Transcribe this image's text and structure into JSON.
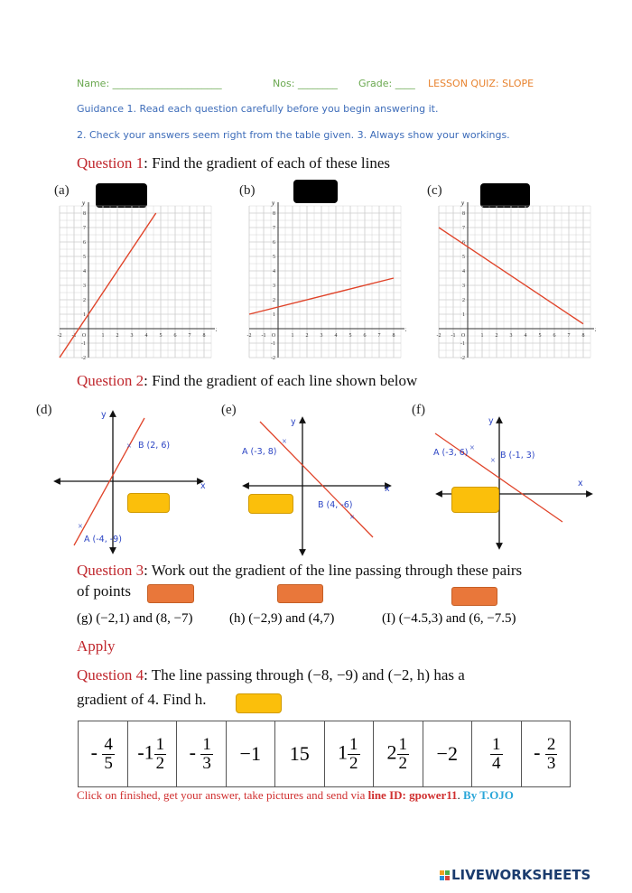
{
  "header": {
    "name_label": "Name: ______________________",
    "nos_label": "Nos: ________",
    "grade_label": "Grade: ____",
    "title": "LESSON QUIZ: SLOPE"
  },
  "guidance": {
    "line1": "Guidance 1. Read each question carefully before you begin answering it.",
    "line2": "2. Check your answers seem right from the table given. 3. Always show your workings."
  },
  "q1": {
    "label": "Question 1",
    "text": ": Find the gradient of each of these lines",
    "graphs": [
      {
        "label": "(a)",
        "x1": -2,
        "y1": -2,
        "x2": 4.67,
        "y2": 8
      },
      {
        "label": "(b)",
        "x1": -2,
        "y1": 1,
        "x2": 8,
        "y2": 3.5
      },
      {
        "label": "(c)",
        "x1": -2,
        "y1": 7,
        "x2": 8,
        "y2": 0.33
      }
    ],
    "axis": {
      "x_ticks": [
        "-2",
        "-1",
        "O",
        "1",
        "2",
        "3",
        "4",
        "5",
        "6",
        "7",
        "8"
      ],
      "y_ticks": [
        "8",
        "7",
        "6",
        "5",
        "4",
        "3",
        "2",
        "1",
        "-1",
        "-2"
      ],
      "x_label": "x",
      "y_label": "y",
      "line_color": "#e0442a"
    }
  },
  "q2": {
    "label": "Question 2",
    "text": ": Find the gradient of each line shown below",
    "graphs": [
      {
        "label": "(d)",
        "a": "A (-4, -9)",
        "b": "B (2, 6)"
      },
      {
        "label": "(e)",
        "a": "A (-3, 8)",
        "b": "B (4, -6)"
      },
      {
        "label": "(f)",
        "a": "A (-3, 6)",
        "b": "B (-1, 3)"
      }
    ],
    "x_label": "x",
    "y_label": "y"
  },
  "q3": {
    "label": "Question 3",
    "text": ": Work out the gradient of the line passing through these pairs",
    "text2": "of points",
    "pairs": [
      "(g) (−2,1) and (8, −7)",
      "(h) (−2,9) and (4,7)",
      "(I) (−4.5,3) and (6, −7.5)"
    ]
  },
  "apply": "Apply",
  "q4": {
    "label": "Question 4",
    "text": ": The line passing through (−8, −9) and (−2, h) has a",
    "text2": "gradient of 4. Find h."
  },
  "answers": [
    {
      "sign": "- ",
      "whole": "",
      "num": "4",
      "den": "5"
    },
    {
      "sign": "-",
      "whole": "1",
      "num": "1",
      "den": "2"
    },
    {
      "sign": "- ",
      "whole": "",
      "num": "1",
      "den": "3"
    },
    {
      "plain": "−1"
    },
    {
      "plain": "15"
    },
    {
      "sign": "",
      "whole": "1",
      "num": "1",
      "den": "2"
    },
    {
      "sign": "",
      "whole": "2",
      "num": "1",
      "den": "2"
    },
    {
      "plain": "−2"
    },
    {
      "sign": "",
      "whole": "",
      "num": "1",
      "den": "4"
    },
    {
      "sign": "- ",
      "whole": "",
      "num": "2",
      "den": "3"
    }
  ],
  "footer": {
    "text1": "Click on finished, get your answer, take pictures and send via ",
    "text2": "line ID: gpower11",
    "text3": ". ",
    "text4": "By T.OJO"
  },
  "logo": "LIVEWORKSHEETS"
}
